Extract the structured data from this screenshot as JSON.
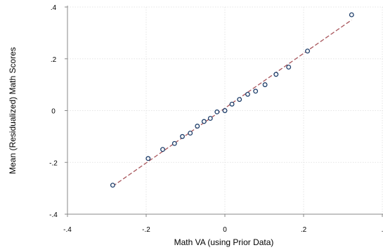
{
  "chart_data": {
    "type": "scatter",
    "xlabel": "Math VA (using Prior Data)",
    "ylabel": "Mean (Residualized) Math Scores",
    "xlim": [
      -0.4,
      0.4
    ],
    "ylim": [
      -0.4,
      0.4
    ],
    "grid": true,
    "x_ticks": [
      {
        "value": -0.4,
        "label": "-.4"
      },
      {
        "value": -0.2,
        "label": "-.2"
      },
      {
        "value": 0,
        "label": "0"
      },
      {
        "value": 0.2,
        "label": ".2"
      },
      {
        "value": 0.4,
        "label": "."
      }
    ],
    "y_ticks": [
      {
        "value": -0.4,
        "label": "-.4"
      },
      {
        "value": -0.2,
        "label": "-.2"
      },
      {
        "value": 0,
        "label": "0"
      },
      {
        "value": 0.2,
        "label": ".2"
      },
      {
        "value": 0.4,
        "label": ".4"
      }
    ],
    "points": [
      {
        "x": -0.285,
        "y": -0.288
      },
      {
        "x": -0.195,
        "y": -0.185
      },
      {
        "x": -0.158,
        "y": -0.15
      },
      {
        "x": -0.128,
        "y": -0.127
      },
      {
        "x": -0.108,
        "y": -0.1
      },
      {
        "x": -0.088,
        "y": -0.087
      },
      {
        "x": -0.07,
        "y": -0.06
      },
      {
        "x": -0.053,
        "y": -0.042
      },
      {
        "x": -0.037,
        "y": -0.03
      },
      {
        "x": -0.02,
        "y": -0.005
      },
      {
        "x": 0.0,
        "y": 0.0
      },
      {
        "x": 0.018,
        "y": 0.025
      },
      {
        "x": 0.037,
        "y": 0.043
      },
      {
        "x": 0.058,
        "y": 0.063
      },
      {
        "x": 0.078,
        "y": 0.075
      },
      {
        "x": 0.102,
        "y": 0.1
      },
      {
        "x": 0.13,
        "y": 0.14
      },
      {
        "x": 0.162,
        "y": 0.168
      },
      {
        "x": 0.21,
        "y": 0.23
      },
      {
        "x": 0.322,
        "y": 0.37
      }
    ],
    "fit_line": {
      "x": [
        -0.285,
        0.322
      ],
      "y": [
        -0.292,
        0.35
      ]
    },
    "colors": {
      "marker": "#1f3f6b",
      "fit_line": "#a8555b",
      "grid": "#e4e4e4",
      "axis": "#888888"
    }
  }
}
